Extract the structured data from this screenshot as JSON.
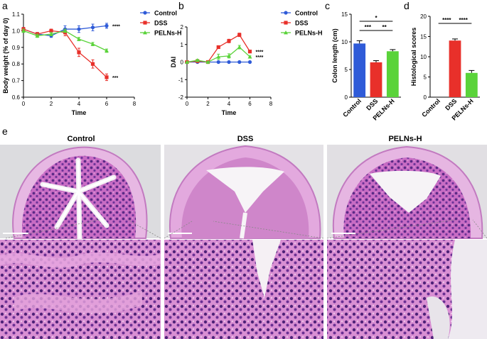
{
  "panel_letters": [
    "a",
    "b",
    "c",
    "d",
    "e"
  ],
  "colors": {
    "control": "#2f5bd8",
    "dss": "#e8302a",
    "pelns": "#5ad33a",
    "he_pink": "#d68fd0",
    "he_purple": "#7a3f9e",
    "he_bg": "#e8e4ea"
  },
  "chart_data": [
    {
      "panel": "a",
      "type": "line",
      "xlabel": "Time",
      "ylabel": "Body weight (% of day 0)",
      "xlim": [
        0,
        8
      ],
      "ylim": [
        0.6,
        1.1
      ],
      "xticks": [
        "0",
        "2",
        "4",
        "6",
        "8"
      ],
      "yticks": [
        "0.6",
        "0.7",
        "0.8",
        "0.9",
        "1.0",
        "1.1"
      ],
      "legend_position": "right",
      "series": [
        {
          "name": "Control",
          "marker": "circle",
          "x": [
            0,
            1,
            2,
            3,
            4,
            5,
            6
          ],
          "y": [
            1.01,
            0.98,
            0.97,
            1.01,
            1.01,
            1.02,
            1.03
          ],
          "err": [
            0.01,
            0.01,
            0.01,
            0.02,
            0.02,
            0.02,
            0.015
          ],
          "sig": "****"
        },
        {
          "name": "DSS",
          "marker": "square",
          "x": [
            0,
            1,
            2,
            3,
            4,
            5,
            6
          ],
          "y": [
            1.01,
            0.98,
            1.0,
            0.99,
            0.87,
            0.8,
            0.72
          ],
          "err": [
            0.01,
            0.01,
            0.01,
            0.02,
            0.025,
            0.025,
            0.02
          ],
          "sig": "***"
        },
        {
          "name": "PELNs-H",
          "marker": "triangle",
          "x": [
            0,
            1,
            2,
            3,
            4,
            5,
            6
          ],
          "y": [
            1.0,
            0.97,
            0.98,
            1.0,
            0.95,
            0.92,
            0.88
          ],
          "err": [
            0.01,
            0.01,
            0.01,
            0.01,
            0.01,
            0.01,
            0.01
          ]
        }
      ]
    },
    {
      "panel": "b",
      "type": "line",
      "xlabel": "Time",
      "ylabel": "DAI",
      "xlim": [
        0,
        8
      ],
      "ylim": [
        -2,
        2
      ],
      "xticks": [
        "0",
        "2",
        "4",
        "6",
        "8"
      ],
      "yticks": [
        "-2",
        "-1",
        "0",
        "1",
        "2"
      ],
      "legend_position": "right",
      "series": [
        {
          "name": "Control",
          "marker": "circle",
          "x": [
            0,
            1,
            2,
            3,
            4,
            5,
            6
          ],
          "y": [
            0,
            0,
            0,
            0,
            0,
            0,
            0
          ],
          "err": [
            0,
            0,
            0,
            0,
            0,
            0,
            0
          ]
        },
        {
          "name": "DSS",
          "marker": "square",
          "x": [
            0,
            1,
            2,
            3,
            4,
            5,
            6
          ],
          "y": [
            0,
            0.05,
            0,
            0.85,
            1.2,
            1.55,
            0.6
          ],
          "err": [
            0,
            0.05,
            0,
            0.08,
            0.1,
            0.1,
            0.05
          ],
          "sig": "****"
        },
        {
          "name": "PELNs-H",
          "marker": "triangle",
          "x": [
            0,
            1,
            2,
            3,
            4,
            5,
            6
          ],
          "y": [
            0,
            0.1,
            0,
            0.3,
            0.35,
            0.85,
            0.3
          ],
          "err": [
            0,
            0.05,
            0,
            0.15,
            0.12,
            0.1,
            0.05
          ],
          "sig": "****"
        }
      ]
    },
    {
      "panel": "c",
      "type": "bar",
      "ylabel": "Colon  length (cm)",
      "categories": [
        "Control",
        "DSS",
        "PELNs-H"
      ],
      "values": [
        9.7,
        6.3,
        8.3
      ],
      "errors": [
        0.5,
        0.3,
        0.3
      ],
      "ylim": [
        0,
        15
      ],
      "yticks": [
        "0",
        "5",
        "10",
        "15"
      ],
      "significance": [
        {
          "label": "*",
          "from": 0,
          "to": 2,
          "level": 0
        },
        {
          "label": "***",
          "from": 0,
          "to": 1,
          "level": 1
        },
        {
          "label": "**",
          "from": 1,
          "to": 2,
          "level": 1
        }
      ]
    },
    {
      "panel": "d",
      "type": "bar",
      "ylabel": "Histological scores",
      "categories": [
        "Control",
        "DSS",
        "PELNs-H"
      ],
      "values": [
        0,
        14,
        6
      ],
      "errors": [
        0,
        0.4,
        0.6
      ],
      "ylim": [
        0,
        20
      ],
      "yticks": [
        "0",
        "5",
        "10",
        "15",
        "20"
      ],
      "significance": [
        {
          "label": "****",
          "from": 0,
          "to": 1,
          "level": 0
        },
        {
          "label": "****",
          "from": 1,
          "to": 2,
          "level": 0
        }
      ]
    }
  ],
  "histology": {
    "titles": [
      "Control",
      "DSS",
      "PELNs-H"
    ]
  }
}
